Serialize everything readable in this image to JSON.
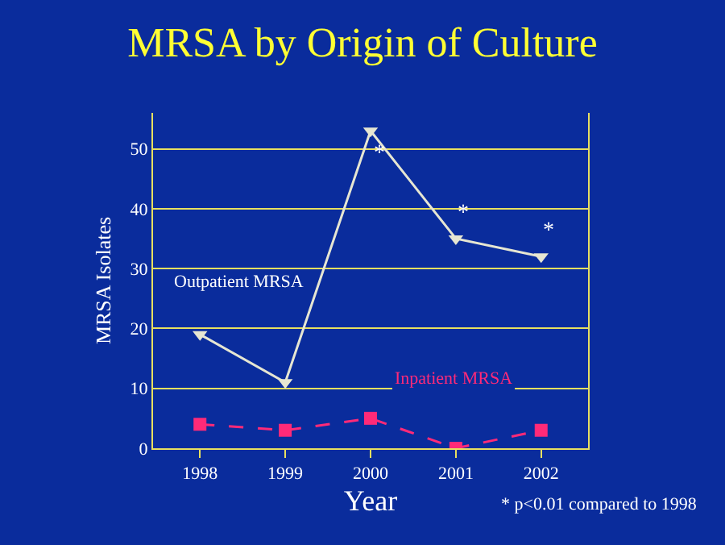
{
  "chart_data": {
    "type": "line",
    "title": "MRSA by Origin of Culture",
    "xlabel": "Year",
    "ylabel": "MRSA Isolates",
    "categories": [
      "1998",
      "1999",
      "2000",
      "2001",
      "2002"
    ],
    "series": [
      {
        "name": "Outpatient MRSA",
        "color": "#e6e6d2",
        "values": [
          19,
          11,
          53,
          35,
          32
        ],
        "marker": "triangle-down",
        "line_style": "solid"
      },
      {
        "name": "Inpatient MRSA",
        "color": "#ff2a78",
        "values": [
          4,
          3,
          5,
          0,
          3
        ],
        "marker": "square",
        "line_style": "dashed"
      }
    ],
    "ylim": [
      0,
      56
    ],
    "yticks": [
      0,
      10,
      20,
      30,
      40,
      50
    ],
    "grid": "y",
    "legend": false,
    "annotations": [
      {
        "text": "*",
        "x": "2000",
        "y": 53
      },
      {
        "text": "*",
        "x": "2001",
        "y": 35
      },
      {
        "text": "*",
        "x": "2002",
        "y": 32
      },
      "* p<0.01 compared to 1998"
    ]
  }
}
